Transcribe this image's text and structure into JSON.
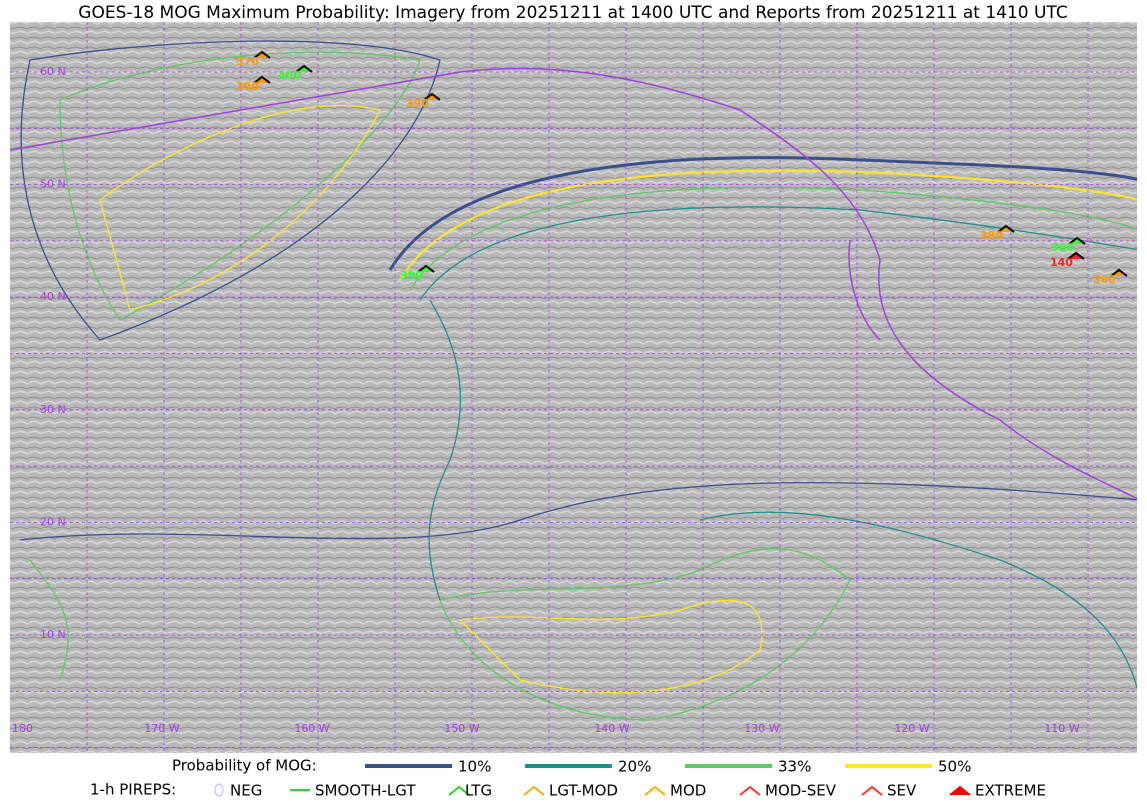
{
  "header": {
    "title": "GOES-18 MOG Maximum Probability: Imagery from 20251211 at 1400 UTC and Reports from 20251211 at 1410 UTC"
  },
  "map": {
    "lat_labels": [
      "60 N",
      "50 N",
      "40 N",
      "30 N",
      "20 N",
      "10 N"
    ],
    "lon_labels": [
      "180",
      "170 W",
      "160 W",
      "150 W",
      "140 W",
      "130 W",
      "120 W",
      "110 W"
    ]
  },
  "reports": [
    {
      "label": "370",
      "color": "#ff9900"
    },
    {
      "label": "390",
      "color": "#ff9900"
    },
    {
      "label": "400",
      "color": "#33ff33"
    },
    {
      "label": "390",
      "color": "#ff9900"
    },
    {
      "label": "390",
      "color": "#33ff33"
    },
    {
      "label": "380",
      "color": "#ff9900"
    },
    {
      "label": "360",
      "color": "#33ff33"
    },
    {
      "label": "140",
      "color": "#ff2222"
    },
    {
      "label": "360",
      "color": "#ff9900"
    }
  ],
  "legend": {
    "probability": {
      "label": "Probability of MOG:",
      "items": [
        {
          "label": "10%",
          "color": "#3b4f8c"
        },
        {
          "label": "20%",
          "color": "#1f8f8a"
        },
        {
          "label": "33%",
          "color": "#5ec962"
        },
        {
          "label": "50%",
          "color": "#fde725"
        }
      ]
    },
    "pireps": {
      "label": "1-h PIREPS:",
      "items": [
        {
          "label": "NEG",
          "color": "#b0b8ff"
        },
        {
          "label": "SMOOTH-LGT",
          "color": "#22dd22"
        },
        {
          "label": "LTG",
          "color": "#22dd22"
        },
        {
          "label": "LGT-MOD",
          "color": "#ffaa00"
        },
        {
          "label": "MOD",
          "color": "#ffaa00"
        },
        {
          "label": "MOD-SEV",
          "color": "#ff3333"
        },
        {
          "label": "SEV",
          "color": "#ff3333"
        },
        {
          "label": "EXTREME",
          "color": "#ff0000"
        }
      ]
    }
  }
}
